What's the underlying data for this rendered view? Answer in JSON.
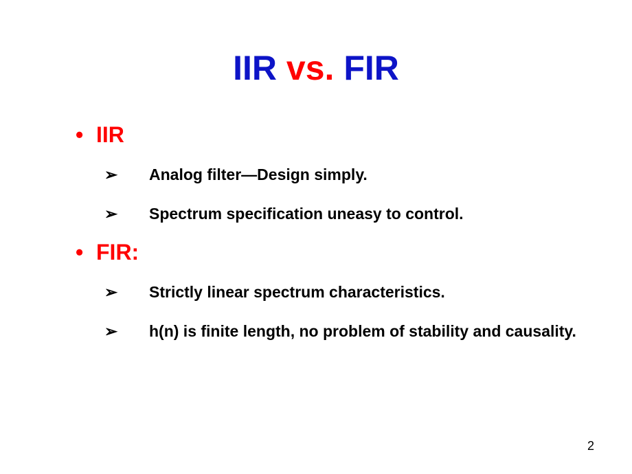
{
  "title": {
    "part1": "IIR ",
    "part2": "vs.",
    "part3": " FIR",
    "part1_color": "#0d14c7",
    "part2_color": "#ff0000",
    "part3_color": "#0d14c7",
    "fontsize": 50
  },
  "sections": [
    {
      "header": "IIR",
      "header_color": "#ff0000",
      "header_fontsize": 32,
      "items": [
        "Analog filter—Design simply.",
        "Spectrum specification uneasy to control."
      ]
    },
    {
      "header": "FIR:",
      "header_color": "#ff0000",
      "header_fontsize": 32,
      "items": [
        "Strictly linear spectrum characteristics.",
        "h(n) is finite length, no problem of stability and causality."
      ]
    }
  ],
  "bullet_style": {
    "dot_color": "#ff0000",
    "arrow_symbol": "➢",
    "arrow_color": "#000000",
    "text_color": "#000000",
    "text_fontsize": 23
  },
  "page_number": "2",
  "background_color": "#ffffff",
  "font_family": "Comic Sans MS"
}
